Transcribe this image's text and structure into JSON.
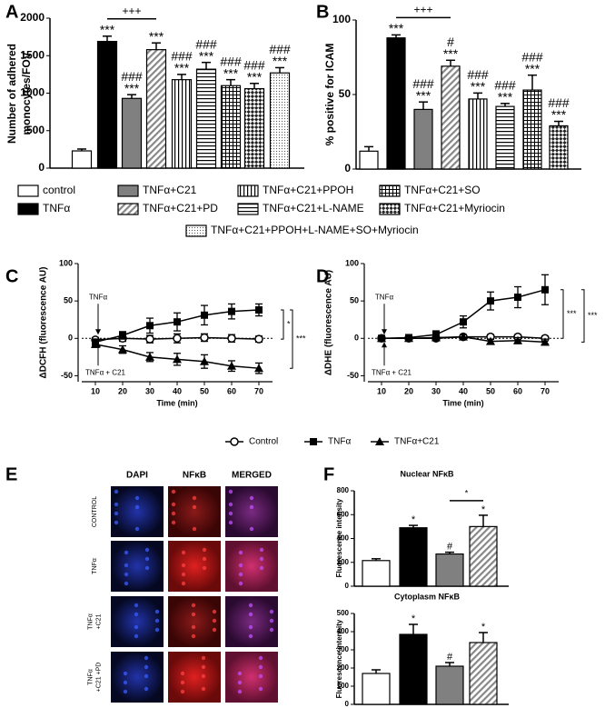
{
  "chart_data": [
    {
      "type": "bar",
      "label": "A",
      "ylabel": [
        "Number of adhered",
        "monocytes/FOV"
      ],
      "categories": [
        "control",
        "TNFα",
        "TNFα+C21",
        "TNFα+C21+PD",
        "TNFα+C21+PPOH",
        "TNFα+C21+L-NAME",
        "TNFα+C21+SO",
        "TNFα+C21+Myriocin",
        "TNFα+C21+PPOH+L-NAME+SO+Myriocin"
      ],
      "values": [
        230,
        1690,
        930,
        1580,
        1180,
        1320,
        1100,
        1060,
        1270
      ],
      "errors": [
        25,
        70,
        50,
        90,
        70,
        90,
        80,
        70,
        70
      ],
      "fills": [
        "white",
        "black",
        "gray",
        "diagonal",
        "vertical",
        "horizontal",
        "grid",
        "checker",
        "dots"
      ],
      "annotations": [
        [],
        [
          "***"
        ],
        [
          "###",
          "***"
        ],
        [
          "***"
        ],
        [
          "###",
          "***"
        ],
        [
          "###",
          "***"
        ],
        [
          "###",
          "***"
        ],
        [
          "###",
          "***"
        ],
        [
          "###",
          "***"
        ]
      ],
      "brackets": [
        {
          "from": 1,
          "to": 3,
          "label": "+++"
        }
      ],
      "ylim": [
        0,
        2000
      ],
      "yticks": [
        0,
        500,
        1000,
        1500,
        2000
      ]
    },
    {
      "type": "bar",
      "label": "B",
      "ylabel": [
        "% positive for ICAM"
      ],
      "values": [
        12,
        88,
        40,
        69,
        47,
        42,
        53,
        29
      ],
      "errors": [
        3,
        2,
        5,
        4,
        4,
        2,
        10,
        3
      ],
      "fills": [
        "white",
        "black",
        "gray",
        "diagonal",
        "vertical",
        "horizontal",
        "grid",
        "checker"
      ],
      "annotations": [
        [],
        [
          "***"
        ],
        [
          "###",
          "***"
        ],
        [
          "#",
          "***"
        ],
        [
          "###",
          "***"
        ],
        [
          "###",
          "***"
        ],
        [
          "###",
          "***"
        ],
        [
          "###",
          "***"
        ]
      ],
      "brackets": [
        {
          "from": 1,
          "to": 3,
          "label": "+++"
        }
      ],
      "ylim": [
        0,
        100
      ],
      "yticks": [
        0,
        50,
        100
      ]
    },
    {
      "type": "line",
      "label": "C",
      "ylabel": "ΔDCFH (fluorescence AU)",
      "xlabel": "Time (min)",
      "x": [
        10,
        20,
        30,
        40,
        50,
        60,
        70
      ],
      "series": [
        {
          "name": "Control",
          "marker": "circle",
          "values": [
            -2,
            0,
            -1,
            0,
            1,
            0,
            -1
          ],
          "errors": [
            3,
            4,
            5,
            6,
            5,
            5,
            4
          ]
        },
        {
          "name": "TNFα",
          "marker": "square",
          "values": [
            -5,
            4,
            17,
            22,
            31,
            36,
            38
          ],
          "errors": [
            4,
            5,
            10,
            12,
            13,
            10,
            8
          ]
        },
        {
          "name": "TNFα+C21",
          "marker": "triangle",
          "values": [
            -8,
            -15,
            -25,
            -28,
            -31,
            -37,
            -40
          ],
          "errors": [
            4,
            5,
            6,
            8,
            9,
            7,
            7
          ]
        }
      ],
      "arrow_labels": [
        "TNFα",
        "TNFα + C21"
      ],
      "significance": [
        "*",
        "***"
      ],
      "zero_line": true,
      "xlim": [
        5,
        75
      ],
      "xticks": [
        10,
        20,
        30,
        40,
        50,
        60,
        70
      ],
      "ylim": [
        -58,
        100
      ],
      "yticks": [
        -50,
        0,
        50,
        100
      ]
    },
    {
      "type": "line",
      "label": "D",
      "ylabel": "ΔDHE (fluorescence AU)",
      "xlabel": "Time (min)",
      "x": [
        10,
        20,
        30,
        40,
        50,
        60,
        70
      ],
      "series": [
        {
          "marker": "circle",
          "values": [
            0,
            0,
            0,
            2,
            2,
            2,
            0
          ],
          "errors": [
            2,
            2,
            2,
            3,
            3,
            3,
            3
          ]
        },
        {
          "marker": "square",
          "values": [
            0,
            1,
            5,
            22,
            50,
            55,
            65
          ],
          "errors": [
            2,
            3,
            5,
            8,
            12,
            14,
            20
          ]
        },
        {
          "marker": "triangle",
          "values": [
            0,
            0,
            1,
            2,
            -4,
            -3,
            -5
          ],
          "errors": [
            2,
            2,
            2,
            3,
            3,
            4,
            4
          ]
        }
      ],
      "arrow_labels": [
        "TNFα",
        "TNFα + C21"
      ],
      "significance": [
        "***",
        "***"
      ],
      "zero_line": true,
      "xlim": [
        5,
        75
      ],
      "xticks": [
        10,
        20,
        30,
        40,
        50,
        60,
        70
      ],
      "ylim": [
        -58,
        100
      ],
      "yticks": [
        -50,
        0,
        50,
        100
      ]
    },
    {
      "type": "bar",
      "label": "F",
      "title": "Nuclear NFκB",
      "ylabel": [
        "Fluorescence intensity"
      ],
      "values": [
        215,
        490,
        270,
        500
      ],
      "errors": [
        15,
        20,
        15,
        95
      ],
      "fills": [
        "white",
        "black",
        "gray",
        "diagonal"
      ],
      "annotations": [
        [],
        [
          "*"
        ],
        [
          "#"
        ],
        [
          "*"
        ]
      ],
      "brackets": [
        {
          "from": 2,
          "to": 3,
          "label": "*"
        }
      ],
      "ylim": [
        0,
        800
      ],
      "yticks": [
        0,
        200,
        400,
        600,
        800
      ]
    },
    {
      "type": "bar",
      "title": "Cytoplasm NFκB",
      "ylabel": [
        "Fluorescence intensity"
      ],
      "values": [
        170,
        385,
        210,
        340
      ],
      "errors": [
        20,
        55,
        20,
        55
      ],
      "fills": [
        "white",
        "black",
        "gray",
        "diagonal"
      ],
      "annotations": [
        [],
        [
          "*"
        ],
        [
          "#"
        ],
        [
          "*"
        ]
      ],
      "brackets": [],
      "ylim": [
        0,
        500
      ],
      "yticks": [
        0,
        100,
        200,
        300,
        400,
        500
      ]
    }
  ],
  "image_panel": {
    "label": "E",
    "columns": [
      "DAPI",
      "NFκB",
      "MERGED"
    ],
    "rows": [
      [
        "CONTROL"
      ],
      [
        "TNFα"
      ],
      [
        "TNFα",
        "+C21"
      ],
      [
        "TNFα",
        "+C21 +PD"
      ]
    ]
  }
}
